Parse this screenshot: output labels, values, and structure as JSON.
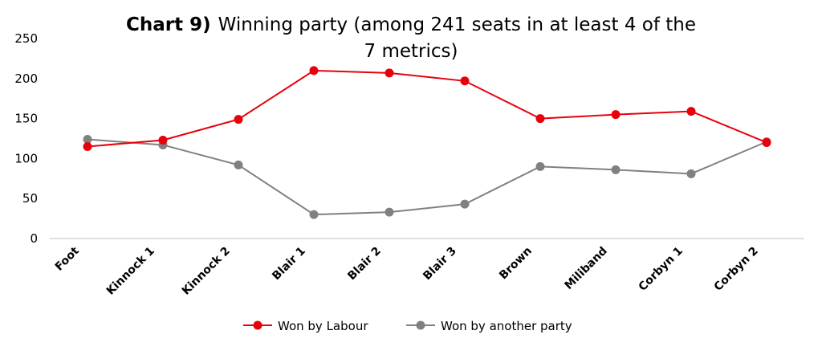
{
  "chart_data": {
    "type": "line",
    "title_bold": "Chart 9)",
    "title_line1": "Winning party (among 241 seats in at least 4 of the",
    "title_line2": "7 metrics)",
    "xlabel": "",
    "ylabel": "",
    "ylim": [
      0,
      250
    ],
    "yticks": [
      "0",
      "50",
      "100",
      "150",
      "200",
      "250"
    ],
    "grid": false,
    "legend_position": "bottom",
    "categories": [
      "Foot",
      "Kinnock 1",
      "Kinnock 2",
      "Blair 1",
      "Blair 2",
      "Blair 3",
      "Brown",
      "Miliband",
      "Corbyn 1",
      "Corbyn 2"
    ],
    "series": [
      {
        "name": "Won by Labour",
        "color": "#e8000b",
        "values": [
          115,
          123,
          149,
          210,
          207,
          197,
          150,
          155,
          159,
          120
        ]
      },
      {
        "name": "Won by another party",
        "color": "#808080",
        "values": [
          124,
          117,
          92,
          30,
          33,
          43,
          90,
          86,
          81,
          121
        ]
      }
    ]
  }
}
